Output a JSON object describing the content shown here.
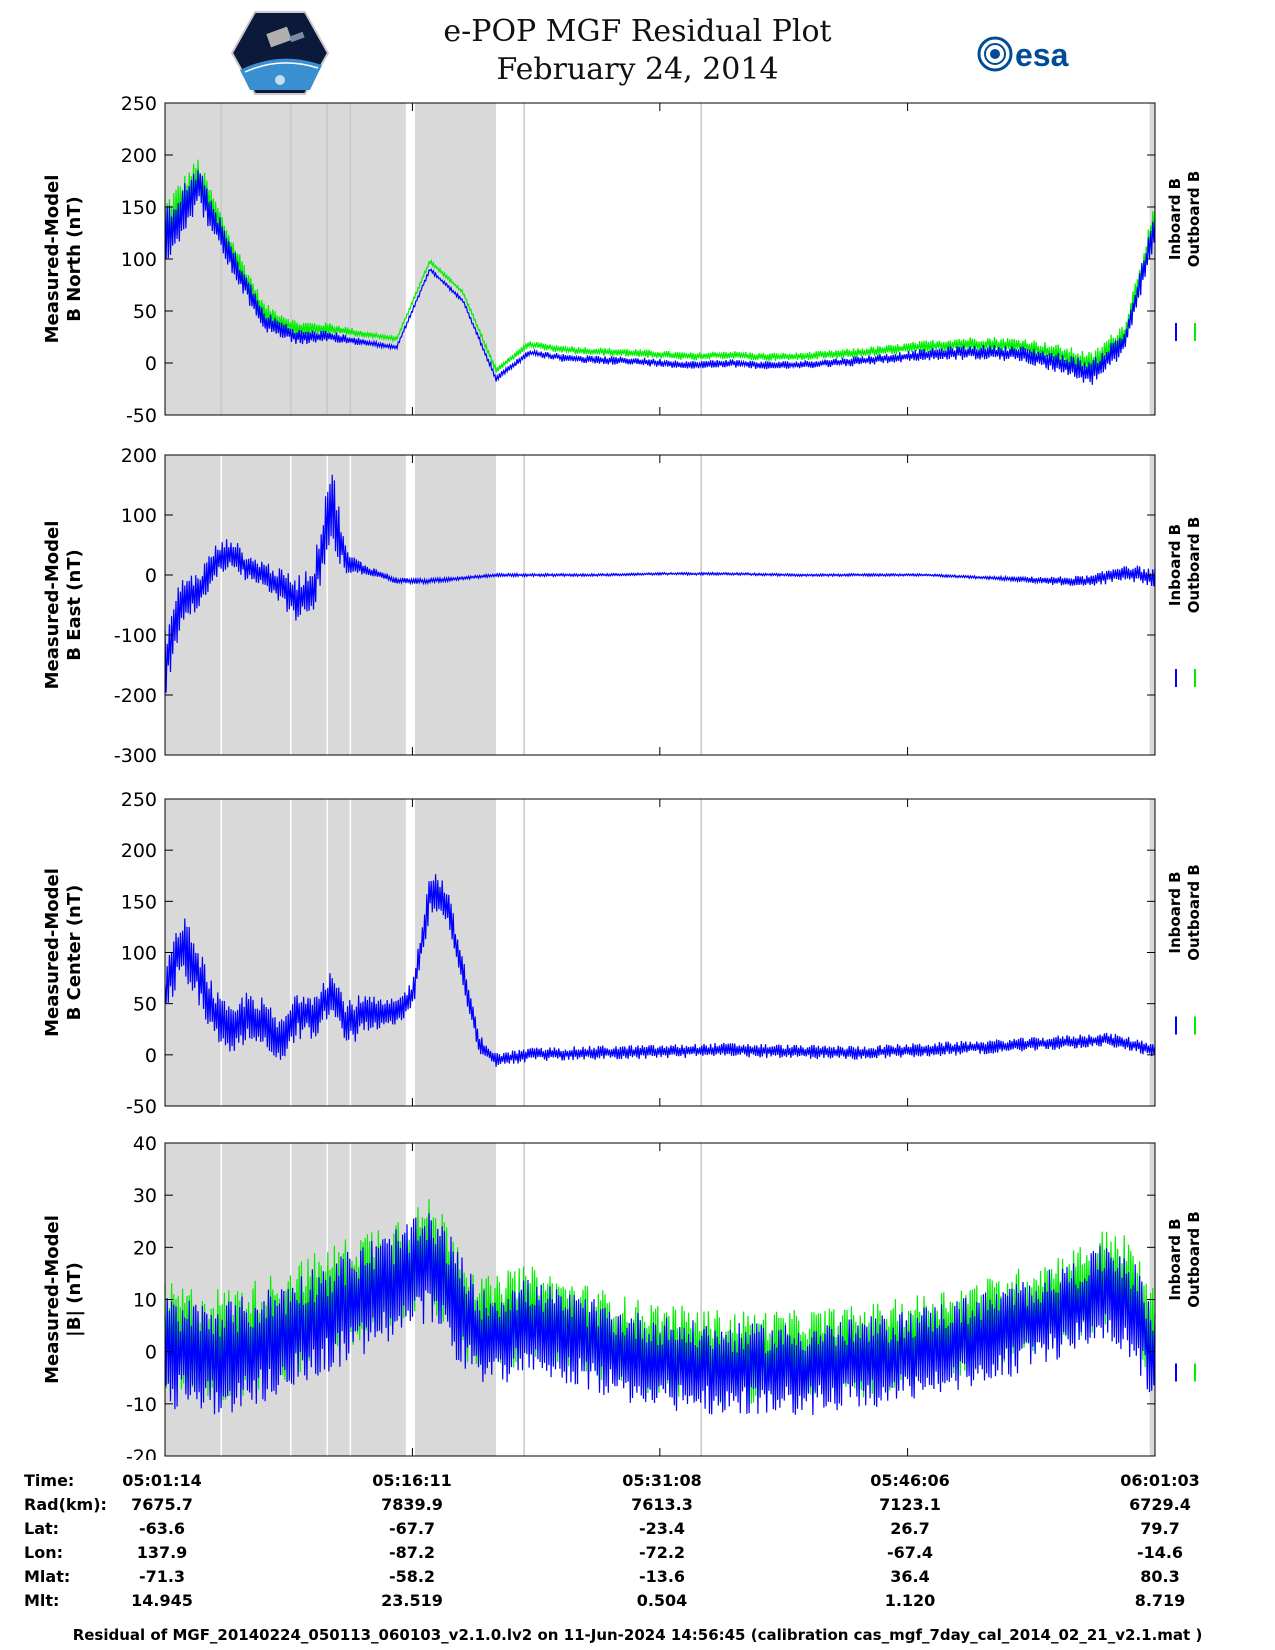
{
  "header": {
    "title_line1": "e-POP MGF Residual Plot",
    "title_line2": "February 24, 2014",
    "left_logo": "cassiope-logo",
    "right_logo_text": "esa"
  },
  "colors": {
    "inboard": "#0000ff",
    "outboard": "#00ee00",
    "shade": "#d9d9d9",
    "vline": "#c8c8c8"
  },
  "chart_data": [
    {
      "type": "line",
      "ylabel_line1": "Measured-Model",
      "ylabel_line2": "B North (nT)",
      "ylim": [
        -50,
        250
      ],
      "yticks": [
        -50,
        0,
        50,
        100,
        150,
        200,
        250
      ],
      "series": [
        {
          "name": "Inboard B"
        },
        {
          "name": "Outboard B"
        }
      ],
      "x_minutes": [
        0,
        2,
        4,
        6,
        8,
        10,
        12,
        14,
        16,
        18,
        20,
        22,
        24,
        26,
        28,
        30,
        32,
        34,
        36,
        38,
        40,
        42,
        44,
        46,
        48,
        50,
        52,
        54,
        56,
        58,
        59.8
      ],
      "center": [
        120,
        170,
        100,
        40,
        25,
        25,
        20,
        15,
        90,
        60,
        -15,
        10,
        5,
        3,
        2,
        0,
        -2,
        0,
        -2,
        -2,
        0,
        2,
        5,
        8,
        10,
        10,
        8,
        0,
        -10,
        20,
        130
      ],
      "noise": [
        60,
        40,
        30,
        20,
        15,
        12,
        6,
        4,
        4,
        4,
        6,
        6,
        8,
        8,
        8,
        8,
        8,
        8,
        8,
        8,
        8,
        10,
        10,
        12,
        14,
        15,
        16,
        20,
        25,
        25,
        30
      ],
      "outboard_offset": 8
    },
    {
      "type": "line",
      "ylabel_line1": "Measured-Model",
      "ylabel_line2": "B East (nT)",
      "ylim": [
        -300,
        200
      ],
      "yticks": [
        -300,
        -200,
        -100,
        0,
        100,
        200
      ],
      "series": [
        {
          "name": "Inboard B"
        },
        {
          "name": "Outboard B"
        }
      ],
      "x_minutes": [
        0,
        1,
        2,
        3,
        4,
        5,
        6,
        7,
        8,
        9,
        10,
        11,
        12,
        13,
        14,
        16,
        18,
        20,
        22,
        26,
        30,
        34,
        38,
        42,
        46,
        50,
        54,
        56,
        58,
        59.8
      ],
      "center": [
        -150,
        -40,
        -30,
        20,
        40,
        10,
        0,
        -20,
        -40,
        -20,
        120,
        20,
        10,
        0,
        -10,
        -10,
        -5,
        0,
        0,
        0,
        2,
        2,
        0,
        0,
        0,
        -5,
        -10,
        -10,
        5,
        -5
      ],
      "noise": [
        120,
        80,
        70,
        60,
        50,
        50,
        50,
        60,
        80,
        80,
        160,
        40,
        20,
        15,
        12,
        8,
        6,
        5,
        5,
        4,
        4,
        4,
        4,
        4,
        4,
        5,
        15,
        20,
        30,
        30
      ],
      "outboard_offset": 0
    },
    {
      "type": "line",
      "ylabel_line1": "Measured-Model",
      "ylabel_line2": "B Center (nT)",
      "ylim": [
        -50,
        250
      ],
      "yticks": [
        -50,
        0,
        50,
        100,
        150,
        200,
        250
      ],
      "series": [
        {
          "name": "Inboard B"
        },
        {
          "name": "Outboard B"
        }
      ],
      "x_minutes": [
        0,
        1,
        2,
        3,
        4,
        5,
        6,
        7,
        8,
        9,
        10,
        11,
        12,
        13,
        14,
        15,
        16,
        17,
        18,
        19,
        20,
        22,
        26,
        30,
        34,
        38,
        42,
        46,
        50,
        54,
        57,
        59.8
      ],
      "center": [
        60,
        110,
        80,
        40,
        20,
        40,
        30,
        10,
        40,
        40,
        60,
        30,
        40,
        40,
        40,
        60,
        160,
        150,
        80,
        10,
        -5,
        0,
        2,
        3,
        5,
        3,
        2,
        5,
        8,
        12,
        15,
        5
      ],
      "noise": [
        50,
        60,
        60,
        50,
        50,
        50,
        50,
        50,
        50,
        50,
        50,
        50,
        40,
        30,
        30,
        30,
        50,
        40,
        30,
        20,
        14,
        14,
        14,
        14,
        14,
        14,
        14,
        14,
        14,
        14,
        14,
        14
      ],
      "outboard_offset": 0
    },
    {
      "type": "line",
      "ylabel_line1": "Measured-Model",
      "ylabel_line2": "|B| (nT)",
      "ylim": [
        -20,
        40
      ],
      "yticks": [
        -20,
        -10,
        0,
        10,
        20,
        30,
        40
      ],
      "series": [
        {
          "name": "Inboard B"
        },
        {
          "name": "Outboard B"
        }
      ],
      "x_minutes": [
        0,
        2,
        4,
        6,
        8,
        10,
        12,
        14,
        15,
        16,
        17,
        18,
        19,
        20,
        21,
        22,
        24,
        26,
        28,
        30,
        32,
        34,
        36,
        38,
        40,
        42,
        44,
        46,
        48,
        50,
        52,
        54,
        56,
        57,
        58,
        59,
        59.8
      ],
      "center": [
        0,
        -1,
        -1,
        1,
        4,
        7,
        10,
        13,
        14.5,
        16,
        13,
        7,
        3,
        3,
        4,
        5,
        3,
        1,
        -1,
        -2,
        -3,
        -3.5,
        -3.5,
        -3.5,
        -3,
        -2.5,
        -1.5,
        0,
        1.5,
        3,
        5,
        7.5,
        10,
        12,
        10,
        5,
        -1
      ],
      "noise": [
        22,
        22,
        22,
        22,
        22,
        22,
        22,
        22,
        22,
        22,
        22,
        22,
        18,
        18,
        20,
        18,
        18,
        18,
        18,
        18,
        18,
        18,
        18,
        18,
        18,
        18,
        18,
        18,
        18,
        18,
        18,
        18,
        18,
        20,
        20,
        20,
        20
      ],
      "outboard_offset": 2.5
    }
  ],
  "legend": {
    "inboard": "Inboard B",
    "outboard": "Outboard B"
  },
  "time_axis": {
    "ticks_minutes": [
      0.0,
      14.95,
      29.9,
      44.87,
      59.82
    ],
    "shaded_minutes": [
      [
        0,
        14.55
      ],
      [
        15.1,
        20.0
      ],
      [
        59.5,
        59.82
      ]
    ],
    "vlines_minutes": [
      3.4,
      7.6,
      9.8,
      11.2,
      21.7,
      32.4
    ]
  },
  "info": {
    "labels": [
      "Time:",
      "Rad(km):",
      "Lat:",
      "Lon:",
      "Mlat:",
      "Mlt:"
    ],
    "columns": [
      [
        "05:01:14",
        "7675.7",
        "-63.6",
        "137.9",
        "-71.3",
        "14.945"
      ],
      [
        "05:16:11",
        "7839.9",
        "-67.7",
        "-87.2",
        "-58.2",
        "23.519"
      ],
      [
        "05:31:08",
        "7613.3",
        "-23.4",
        "-72.2",
        "-13.6",
        "0.504"
      ],
      [
        "05:46:06",
        "7123.1",
        "26.7",
        "-67.4",
        "36.4",
        "1.120"
      ],
      [
        "06:01:03",
        "6729.4",
        "79.7",
        "-14.6",
        "80.3",
        "8.719"
      ]
    ]
  },
  "footer": "Residual of MGF_20140224_050113_060103_v2.1.0.lv2 on 11-Jun-2024 14:56:45 (calibration cas_mgf_7day_cal_2014_02_21_v2.1.mat )"
}
